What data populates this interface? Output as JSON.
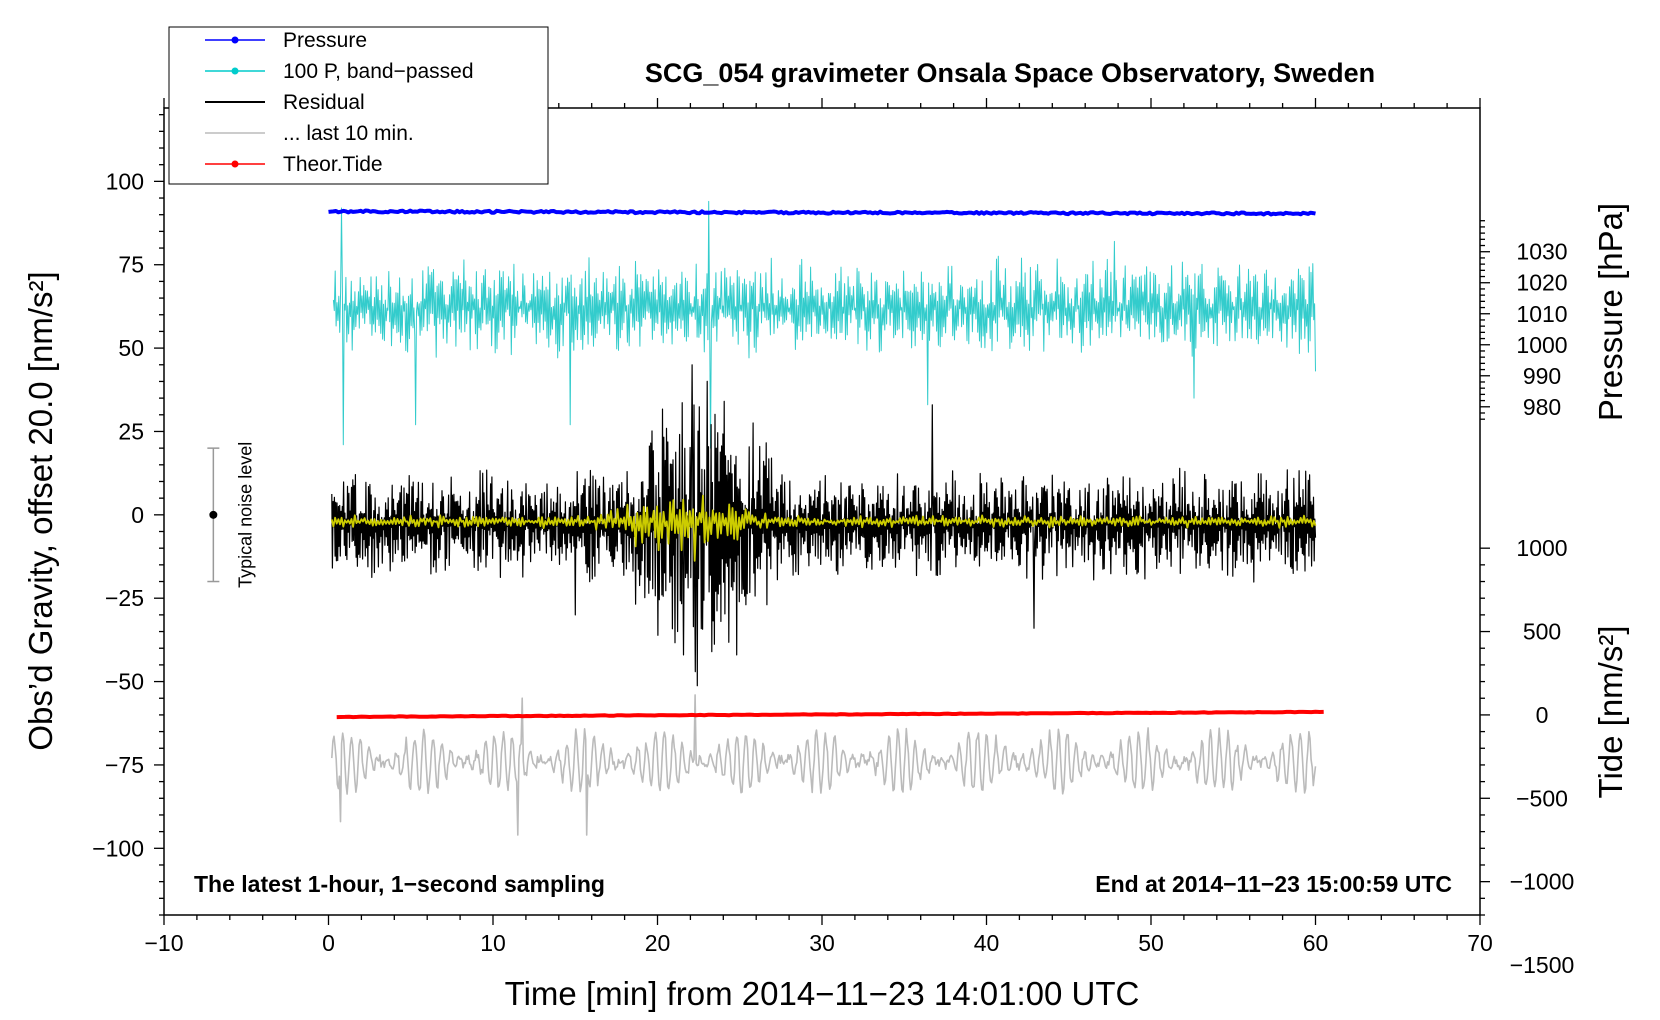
{
  "chart_data": {
    "type": "line",
    "title": "SCG_054 gravimeter Onsala Space Observatory, Sweden",
    "xlabel": "Time [min] from 2014−11−23 14:01:00 UTC",
    "ylabel_left": "Obs’d Gravity, offset 20.0 [nm/s²]",
    "ylabel_right_top": "Pressure [hPa]",
    "ylabel_right_bottom": "Tide [nm/s²]",
    "xlim": [
      -10,
      70
    ],
    "ylim": [
      -120,
      122
    ],
    "x_ticks": [
      -10,
      0,
      10,
      20,
      30,
      40,
      50,
      60,
      70
    ],
    "x_tick_labels": [
      "−10",
      "0",
      "10",
      "20",
      "30",
      "40",
      "50",
      "60",
      "70"
    ],
    "y_ticks": [
      -100,
      -75,
      -50,
      -25,
      0,
      25,
      50,
      75,
      100
    ],
    "y_tick_labels": [
      "−100",
      "−75",
      "−50",
      "−25",
      "0",
      "25",
      "50",
      "75",
      "100"
    ],
    "pressure_axis": {
      "ticks": [
        980,
        990,
        1000,
        1010,
        1020,
        1030
      ],
      "tick_labels": [
        "980",
        "990",
        "1000",
        "1010",
        "1020",
        "1030"
      ],
      "left_value_at_1000": 51,
      "left_units_per_hpa": 0.93
    },
    "tide_axis": {
      "ticks": [
        -1500,
        -1000,
        -500,
        0,
        500,
        1000
      ],
      "tick_labels": [
        "−1500",
        "−1000",
        "−500",
        "0",
        "500",
        "1000"
      ],
      "left_value_at_0": -60,
      "left_units_per_unit": 0.05
    },
    "annotations": {
      "bottom_left": "The latest 1-hour, 1−second sampling",
      "bottom_right": "End at 2014−11−23 15:00:59 UTC",
      "noise_label": "Typical noise level",
      "noise_center": 0,
      "noise_half_range": 20,
      "noise_x": -7
    },
    "legend": [
      {
        "label": "Pressure",
        "color": "#0000ff",
        "marker": true
      },
      {
        "label": "100 P, band−passed",
        "color": "#00cccc",
        "marker": true
      },
      {
        "label": "Residual",
        "color": "#000000",
        "marker": false
      },
      {
        "label": "... last 10 min.",
        "color": "#bbbbbb",
        "marker": false
      },
      {
        "label": "Theor.Tide",
        "color": "#ff0000",
        "marker": true
      }
    ],
    "series": [
      {
        "name": "Pressure",
        "color": "#0000ff",
        "kind": "flat",
        "x_start": 0,
        "x_end": 60,
        "start": 91,
        "end": 90.3,
        "jitter": 0.3,
        "points": 400
      },
      {
        "name": "100 P, band-passed",
        "color": "#33cccc",
        "kind": "noise",
        "x_start": 0.3,
        "x_end": 60,
        "baseline": 62,
        "amplitude": 7,
        "points": 1100,
        "seed": 11,
        "spikes": [
          [
            0.8,
            92
          ],
          [
            0.9,
            21
          ],
          [
            5.3,
            27
          ],
          [
            14.7,
            27
          ],
          [
            23.1,
            94
          ],
          [
            23.2,
            20
          ],
          [
            36.4,
            33
          ],
          [
            47.8,
            82
          ],
          [
            52.6,
            35
          ],
          [
            60,
            43
          ]
        ]
      },
      {
        "name": "Residual",
        "color": "#000000",
        "kind": "noise",
        "x_start": 0.2,
        "x_end": 60,
        "baseline": -3,
        "amplitude": 8,
        "points": 1500,
        "seed": 7,
        "burst": {
          "center": 22.5,
          "width": 3.5,
          "gain": 3.2
        },
        "spikes": [
          [
            22.1,
            45
          ],
          [
            22.3,
            -47
          ],
          [
            23.0,
            40
          ],
          [
            21.6,
            -42
          ],
          [
            24.8,
            -42
          ],
          [
            36.7,
            33
          ],
          [
            42.9,
            -34
          ],
          [
            15.0,
            -30
          ]
        ]
      },
      {
        "name": "Residual filtered",
        "color": "#cccc00",
        "kind": "noise",
        "x_start": 0.2,
        "x_end": 60,
        "baseline": -2,
        "amplitude": 0.9,
        "points": 600,
        "seed": 3,
        "burst": {
          "center": 21.5,
          "width": 3.5,
          "gain": 6.5
        }
      },
      {
        "name": "... last 10 min.",
        "color": "#bbbbbb",
        "kind": "wave",
        "x_start": 0.2,
        "x_end": 60,
        "baseline": -74,
        "amplitude": 9,
        "points": 900,
        "seed": 5,
        "cycles": 110,
        "spikes": [
          [
            0.7,
            -92
          ],
          [
            11.5,
            -96
          ],
          [
            15.7,
            -96
          ],
          [
            22.3,
            -54
          ],
          [
            11.8,
            -55
          ]
        ]
      },
      {
        "name": "Theor.Tide",
        "color": "#ff0000",
        "kind": "flat",
        "x_start": 0.5,
        "x_end": 60.5,
        "start": -60.6,
        "end": -59.1,
        "jitter": 0.08,
        "points": 240
      }
    ]
  }
}
